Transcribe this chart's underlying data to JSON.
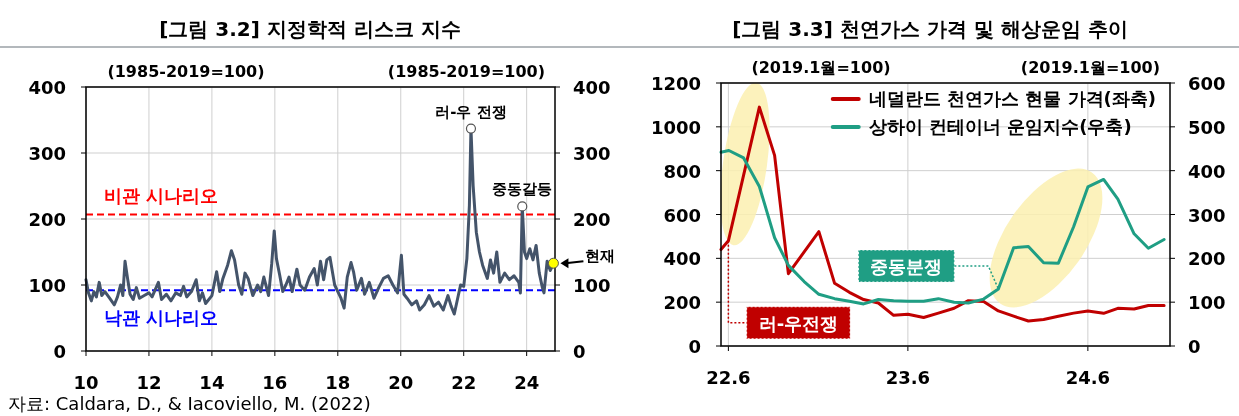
{
  "chart_data": [
    {
      "type": "line",
      "title": "[그림 3.2] 지정학적 리스크 지수",
      "ylabel": "(1985-2019=100)",
      "y2label": "(1985-2019=100)",
      "xlim": [
        10,
        24.9
      ],
      "xticks": [
        10,
        12,
        14,
        16,
        18,
        20,
        22,
        24
      ],
      "ylim": [
        0,
        400
      ],
      "yticks": [
        0,
        100,
        200,
        300,
        400
      ],
      "y2lim": [
        0,
        400
      ],
      "y2ticks": [
        0,
        100,
        200,
        300,
        400
      ],
      "grid": true,
      "x": [
        10.0,
        10.08,
        10.17,
        10.25,
        10.33,
        10.42,
        10.5,
        10.6,
        10.75,
        10.9,
        11.0,
        11.1,
        11.17,
        11.24,
        11.32,
        11.4,
        11.5,
        11.6,
        11.7,
        11.85,
        12.0,
        12.1,
        12.3,
        12.4,
        12.55,
        12.7,
        12.85,
        13.0,
        13.1,
        13.2,
        13.35,
        13.5,
        13.6,
        13.7,
        13.8,
        14.0,
        14.15,
        14.25,
        14.35,
        14.5,
        14.62,
        14.72,
        14.85,
        14.95,
        15.05,
        15.15,
        15.3,
        15.45,
        15.55,
        15.65,
        15.8,
        15.9,
        15.98,
        16.05,
        16.15,
        16.25,
        16.35,
        16.45,
        16.55,
        16.7,
        16.8,
        16.95,
        17.1,
        17.25,
        17.35,
        17.45,
        17.55,
        17.65,
        17.75,
        17.9,
        18.0,
        18.1,
        18.2,
        18.3,
        18.42,
        18.5,
        18.6,
        18.75,
        18.85,
        19.0,
        19.15,
        19.3,
        19.45,
        19.6,
        19.75,
        19.9,
        20.02,
        20.1,
        20.2,
        20.35,
        20.5,
        20.6,
        20.75,
        20.9,
        21.05,
        21.2,
        21.35,
        21.5,
        21.6,
        21.7,
        21.8,
        21.9,
        22.0,
        22.1,
        22.18,
        22.23,
        22.3,
        22.4,
        22.5,
        22.6,
        22.75,
        22.85,
        22.95,
        23.05,
        23.15,
        23.3,
        23.45,
        23.6,
        23.75,
        23.8,
        23.86,
        23.93,
        24.0,
        24.1,
        24.2,
        24.3,
        24.4,
        24.5,
        24.55,
        24.65,
        24.75,
        24.85
      ],
      "series": [
        {
          "color": "#44546a",
          "values": [
            108,
            88,
            76,
            90,
            82,
            104,
            84,
            90,
            80,
            70,
            82,
            100,
            84,
            136,
            110,
            86,
            78,
            96,
            80,
            84,
            88,
            82,
            104,
            78,
            86,
            76,
            88,
            84,
            98,
            82,
            90,
            108,
            76,
            88,
            72,
            84,
            120,
            90,
            110,
            130,
            152,
            138,
            100,
            86,
            118,
            110,
            84,
            100,
            90,
            112,
            84,
            132,
            182,
            140,
            116,
            90,
            100,
            112,
            90,
            124,
            100,
            92,
            112,
            125,
            100,
            136,
            108,
            138,
            142,
            100,
            90,
            80,
            65,
            112,
            134,
            120,
            92,
            110,
            86,
            104,
            80,
            96,
            110,
            114,
            100,
            88,
            145,
            86,
            80,
            70,
            76,
            62,
            70,
            84,
            68,
            74,
            62,
            84,
            68,
            56,
            78,
            100,
            98,
            140,
            220,
            337,
            250,
            180,
            150,
            130,
            110,
            138,
            118,
            150,
            104,
            118,
            108,
            114,
            104,
            88,
            219,
            150,
            140,
            155,
            138,
            160,
            118,
            96,
            88,
            136,
            122,
            133
          ]
        }
      ],
      "ref_lines": [
        {
          "axis": "y",
          "value": 207,
          "label": "비관 시나리오",
          "color": "#ff0000",
          "line_style": "dashed"
        },
        {
          "axis": "y",
          "value": 92,
          "label": "낙관 시나리오",
          "color": "#0000ff",
          "line_style": "dashed"
        }
      ],
      "annotations": [
        {
          "text": "러-우 전쟁",
          "x": 22.23,
          "y": 337
        },
        {
          "text": "중동갈등",
          "x": 23.86,
          "y": 219
        },
        {
          "text": "현재",
          "x": 24.85,
          "y": 133
        },
        "자료: Caldara, D., & Iacoviello, M. (2022)"
      ]
    },
    {
      "type": "line",
      "title": "[그림 3.3] 천연가스 가격 및 해상운임 추이",
      "ylabel": "(2019.1월=100)",
      "y2label": "(2019.1월=100)",
      "xlim": [
        "2022-05-17",
        "2024-11-15"
      ],
      "xticks": [
        {
          "value": "2022-06",
          "label": "22.6"
        },
        {
          "value": "2023-06",
          "label": "23.6"
        },
        {
          "value": "2024-06",
          "label": "24.6"
        }
      ],
      "ylim": [
        0,
        1200
      ],
      "yticks": [
        0,
        200,
        400,
        600,
        800,
        1000,
        1200
      ],
      "y2lim": [
        0,
        600
      ],
      "y2ticks": [
        0,
        100,
        200,
        300,
        400,
        500,
        600
      ],
      "grid": true,
      "legend": "top right",
      "series": [
        {
          "name": "네덜란드 천연가스 현물 가격(좌축)",
          "color": "#c00000",
          "x": [
            "2022-05-17",
            "2022-06-01",
            "2022-08-03",
            "2022-09-03",
            "2022-10-01",
            "2022-12-02",
            "2023-01-03",
            "2023-02-02",
            "2023-03-03",
            "2023-04-02",
            "2023-05-03",
            "2023-06-01",
            "2023-07-03",
            "2023-08-02",
            "2023-09-03",
            "2023-10-02",
            "2023-11-02",
            "2023-12-02",
            "2024-01-02",
            "2024-02-01",
            "2024-03-03",
            "2024-04-02",
            "2024-05-03",
            "2024-06-01",
            "2024-07-03",
            "2024-08-01",
            "2024-09-03",
            "2024-10-02",
            "2024-11-03"
          ],
          "values": [
            440,
            480,
            1090,
            870,
            330,
            522,
            286,
            245,
            212,
            196,
            140,
            145,
            130,
            150,
            172,
            207,
            203,
            160,
            136,
            114,
            121,
            136,
            150,
            160,
            149,
            172,
            169,
            185,
            185
          ]
        },
        {
          "name": "상하이 컨테이너 운임지수(우축)",
          "color": "#1f9e84",
          "axis": "y2",
          "x": [
            "2022-05-17",
            "2022-06-02",
            "2022-07-02",
            "2022-08-03",
            "2022-09-03",
            "2022-10-01",
            "2022-11-02",
            "2022-12-02",
            "2023-01-03",
            "2023-02-02",
            "2023-03-03",
            "2023-04-02",
            "2023-05-03",
            "2023-06-01",
            "2023-07-03",
            "2023-08-02",
            "2023-09-03",
            "2023-10-02",
            "2023-11-02",
            "2023-12-02",
            "2024-01-02",
            "2024-02-01",
            "2024-03-03",
            "2024-04-02",
            "2024-05-03",
            "2024-06-01",
            "2024-07-03",
            "2024-08-01",
            "2024-09-03",
            "2024-10-02",
            "2024-11-03"
          ],
          "values": [
            442,
            446,
            429,
            364,
            247,
            184,
            147,
            118,
            108,
            102,
            96,
            106,
            103,
            102,
            102,
            108,
            100,
            98,
            107,
            130,
            224,
            227,
            190,
            189,
            272,
            363,
            380,
            335,
            256,
            223,
            243
          ]
        }
      ],
      "annotations": [
        {
          "text": "러-우전쟁",
          "x": "2022-06-01",
          "y": 480
        },
        {
          "text": "중동분쟁",
          "x": "2023-12-02",
          "y": 260
        }
      ]
    }
  ]
}
